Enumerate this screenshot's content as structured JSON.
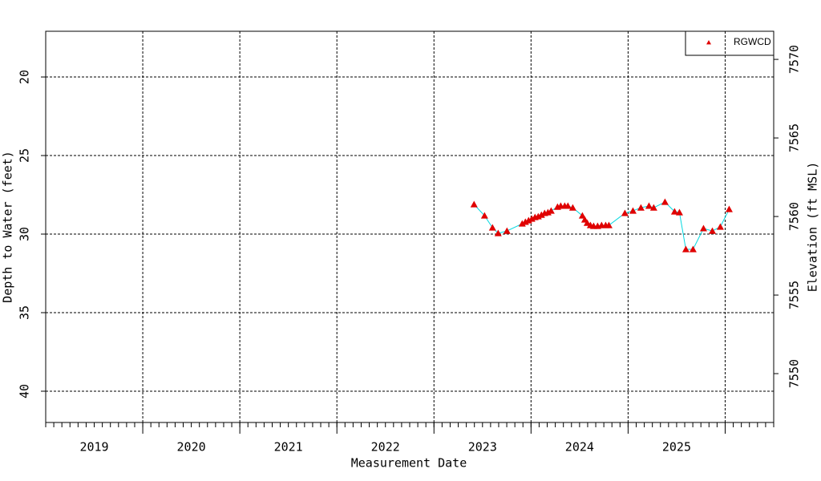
{
  "chart_data": {
    "type": "scatter-line",
    "xlabel": "Measurement Date",
    "ylabel": "Depth to Water (feet)",
    "y2label": "Elevation (ft MSL)",
    "xlim": [
      2019.0,
      2026.5
    ],
    "xticks": [
      {
        "value": 2019.5,
        "label": "2019"
      },
      {
        "value": 2020.5,
        "label": "2020"
      },
      {
        "value": 2021.5,
        "label": "2021"
      },
      {
        "value": 2022.5,
        "label": "2022"
      },
      {
        "value": 2023.5,
        "label": "2023"
      },
      {
        "value": 2024.5,
        "label": "2024"
      },
      {
        "value": 2025.5,
        "label": "2025"
      }
    ],
    "xgrid": [
      2020,
      2021,
      2022,
      2023,
      2024,
      2025,
      2026
    ],
    "ylim": [
      17.09,
      41.99
    ],
    "y_inverted": true,
    "yticks": [
      20,
      25,
      30,
      35,
      40
    ],
    "y2lim": [
      7571.79,
      7546.89
    ],
    "y2ticks": [
      7550,
      7555,
      7560,
      7565,
      7570
    ],
    "grid": true,
    "legend": "top-right",
    "series": [
      {
        "name": "RGWCD",
        "color": "#e00000",
        "line_color": "#00d8e0",
        "x": [
          2023.413,
          2023.521,
          2023.603,
          2023.661,
          2023.752,
          2023.909,
          2023.942,
          2023.975,
          2024.008,
          2024.041,
          2024.074,
          2024.107,
          2024.14,
          2024.174,
          2024.207,
          2024.273,
          2024.306,
          2024.347,
          2024.38,
          2024.43,
          2024.529,
          2024.554,
          2024.579,
          2024.612,
          2024.645,
          2024.686,
          2024.727,
          2024.769,
          2024.802,
          2024.967,
          2025.05,
          2025.132,
          2025.215,
          2025.264,
          2025.38,
          2025.479,
          2025.529,
          2025.595,
          2025.669,
          2025.777,
          2025.868,
          2025.95,
          2026.041
        ],
        "values": [
          28.11,
          28.83,
          29.59,
          29.95,
          29.8,
          29.34,
          29.23,
          29.13,
          29.03,
          28.93,
          28.88,
          28.78,
          28.67,
          28.62,
          28.52,
          28.27,
          28.21,
          28.21,
          28.21,
          28.32,
          28.83,
          29.08,
          29.29,
          29.44,
          29.49,
          29.49,
          29.44,
          29.44,
          29.44,
          28.67,
          28.52,
          28.32,
          28.21,
          28.32,
          27.96,
          28.57,
          28.62,
          30.97,
          30.97,
          29.64,
          29.8,
          29.54,
          28.42
        ]
      }
    ]
  }
}
